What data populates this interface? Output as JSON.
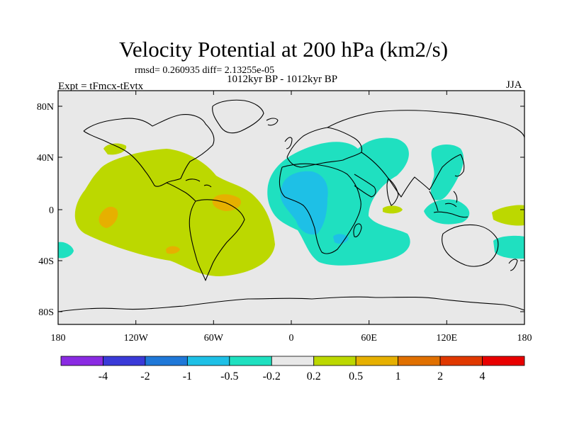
{
  "title": "Velocity Potential at 200 hPa (km2/s)",
  "rmsd_text": "rmsd= 0.260935 diff= 2.13255e-05",
  "period_text": "1012kyr BP - 1012kyr BP",
  "expt_text": "Expt = tFmcx-tEvtx",
  "season": "JJA",
  "lat_labels": [
    "80N",
    "40N",
    "0",
    "40S",
    "80S"
  ],
  "lon_labels": [
    "180",
    "120W",
    "60W",
    "0",
    "60E",
    "120E",
    "180"
  ],
  "colorbar": {
    "colors": [
      "#8a2be2",
      "#3a3ad8",
      "#1f78d8",
      "#1ec0e6",
      "#1fe0c0",
      "#e8e8e8",
      "#bcd800",
      "#e6b000",
      "#e07000",
      "#e03800",
      "#e80000"
    ],
    "labels": [
      "-4",
      "-2",
      "-1",
      "-0.5",
      "-0.2",
      "0.2",
      "0.5",
      "1",
      "2",
      "4"
    ]
  },
  "colors": {
    "background": "#e8e8e8",
    "positive_weak": "#bcd800",
    "positive_mid": "#e6b000",
    "negative_weak": "#1fe0c0",
    "negative_mid": "#1ec0e6"
  }
}
